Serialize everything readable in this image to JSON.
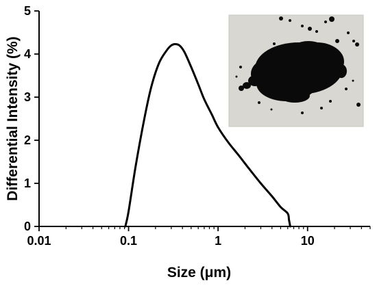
{
  "chart_data": {
    "type": "line",
    "xlabel": "Size (μm)",
    "ylabel": "Differential Intensity (%)",
    "x_scale": "log",
    "xlim": [
      0.01,
      50
    ],
    "ylim": [
      0,
      5
    ],
    "x_ticks": [
      0.01,
      0.1,
      1,
      10
    ],
    "x_tick_labels": [
      "0.01",
      "0.1",
      "1",
      "10"
    ],
    "y_ticks": [
      0,
      1,
      2,
      3,
      4,
      5
    ],
    "y_tick_labels": [
      "0",
      "1",
      "2",
      "3",
      "4",
      "5"
    ],
    "grid": false,
    "inset": "photograph of black powder on light grey background, upper right",
    "series": [
      {
        "color": "#000000",
        "points": [
          [
            0.092,
            0.0
          ],
          [
            0.1,
            0.35
          ],
          [
            0.12,
            1.4
          ],
          [
            0.15,
            2.5
          ],
          [
            0.18,
            3.25
          ],
          [
            0.22,
            3.8
          ],
          [
            0.27,
            4.1
          ],
          [
            0.3,
            4.2
          ],
          [
            0.33,
            4.23
          ],
          [
            0.37,
            4.2
          ],
          [
            0.42,
            4.05
          ],
          [
            0.5,
            3.7
          ],
          [
            0.6,
            3.3
          ],
          [
            0.7,
            2.95
          ],
          [
            0.85,
            2.6
          ],
          [
            1.0,
            2.3
          ],
          [
            1.3,
            1.95
          ],
          [
            1.7,
            1.65
          ],
          [
            2.2,
            1.35
          ],
          [
            3.0,
            1.0
          ],
          [
            4.0,
            0.7
          ],
          [
            5.0,
            0.45
          ],
          [
            6.0,
            0.3
          ],
          [
            6.2,
            0.15
          ],
          [
            6.4,
            0.0
          ]
        ]
      }
    ]
  }
}
